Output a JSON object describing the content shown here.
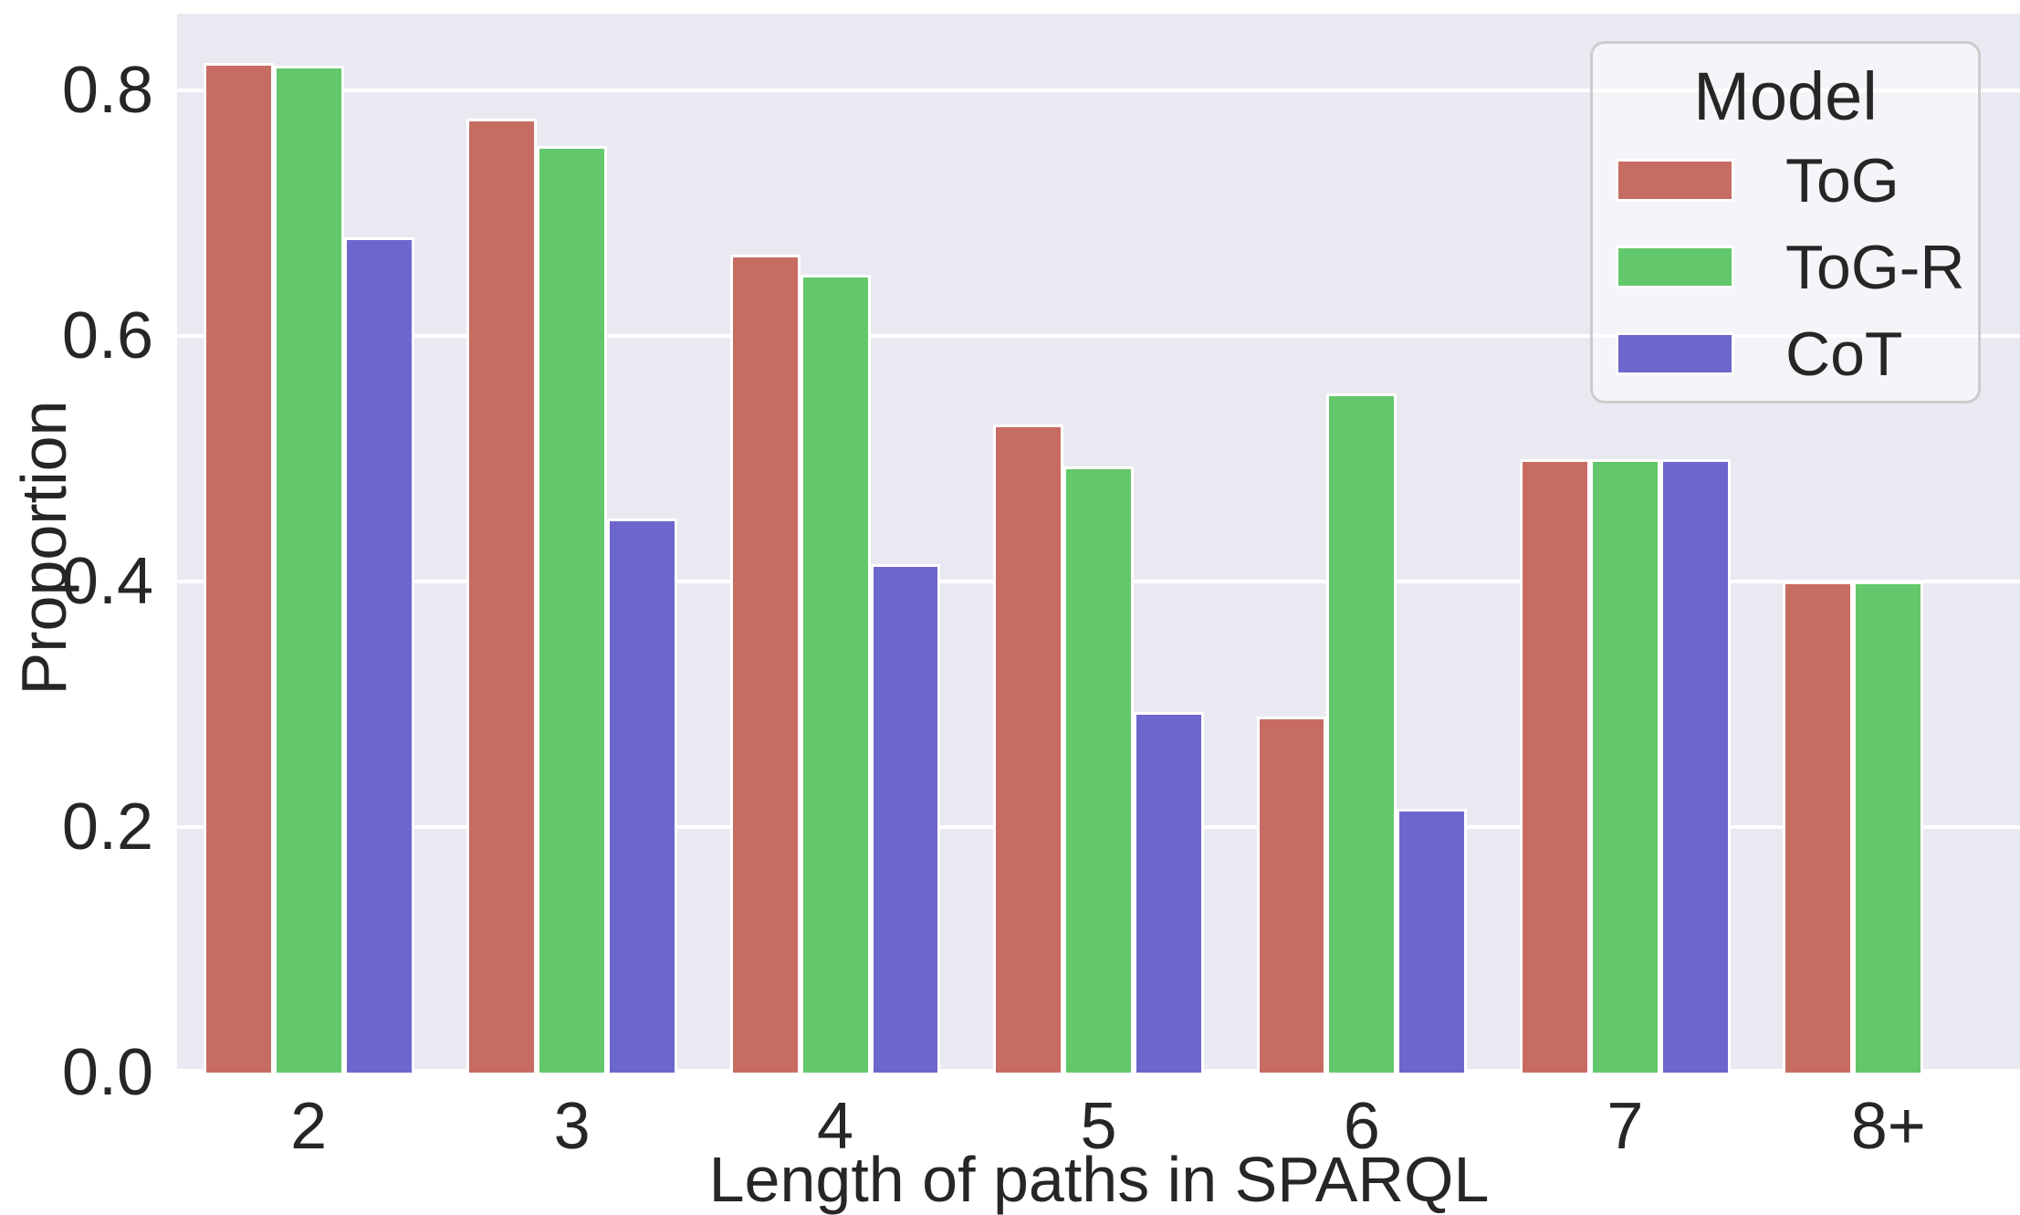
{
  "chart_data": {
    "type": "bar",
    "title": "",
    "xlabel": "Length of paths in SPARQL",
    "ylabel": "Proportion",
    "categories": [
      "2",
      "3",
      "4",
      "5",
      "6",
      "7",
      "8+"
    ],
    "series": [
      {
        "name": "ToG",
        "color": "#c76c63",
        "values": [
          0.822,
          0.777,
          0.666,
          0.528,
          0.29,
          0.5,
          0.4
        ]
      },
      {
        "name": "ToG-R",
        "color": "#63c76b",
        "values": [
          0.82,
          0.755,
          0.65,
          0.494,
          0.553,
          0.5,
          0.4
        ]
      },
      {
        "name": "CoT",
        "color": "#6d66cc",
        "values": [
          0.68,
          0.451,
          0.414,
          0.294,
          0.215,
          0.5,
          null
        ]
      }
    ],
    "ylim": [
      0,
      0.8625
    ],
    "yticks": [
      0.0,
      0.2,
      0.4,
      0.6,
      0.8
    ],
    "ytick_labels": [
      "0.0",
      "0.2",
      "0.4",
      "0.6",
      "0.8"
    ],
    "legend_title": "Model",
    "legend_position": "upper right",
    "grid": "horizontal-white",
    "panel_background": "#e9e9f1",
    "gridline_color": "#ffffff",
    "text_color": "#262626",
    "bar_edge_color": "#ffffff"
  }
}
